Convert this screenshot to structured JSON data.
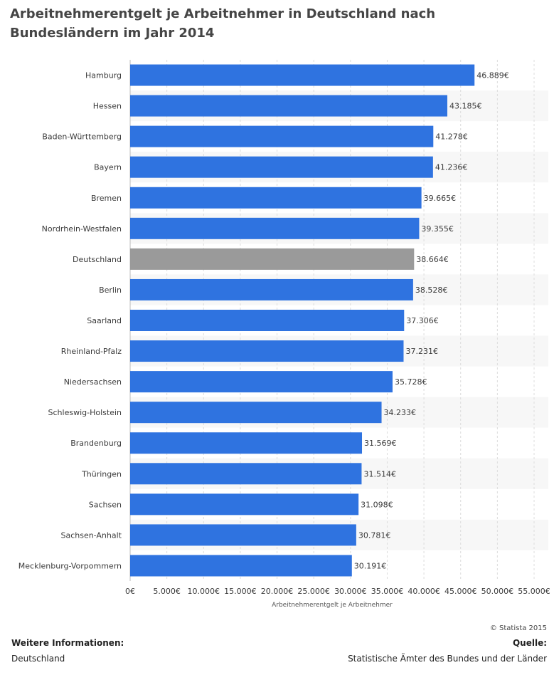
{
  "chart_data": {
    "type": "bar",
    "orientation": "horizontal",
    "title": "Arbeitnehmerentgelt je Arbeitnehmer in Deutschland nach Bundesländern im Jahr 2014",
    "xlabel": "Arbeitnehmerentgelt je Arbeitnehmer",
    "ylabel": "",
    "xlim": [
      0,
      55000
    ],
    "x_ticks": [
      0,
      5000,
      10000,
      15000,
      20000,
      25000,
      30000,
      35000,
      40000,
      45000,
      50000,
      55000
    ],
    "x_tick_labels": [
      "0€",
      "5.000€",
      "10.000€",
      "15.000€",
      "20.000€",
      "25.000€",
      "30.000€",
      "35.000€",
      "40.000€",
      "45.000€",
      "50.000€",
      "55.000€"
    ],
    "grid": true,
    "categories": [
      "Hamburg",
      "Hessen",
      "Baden-Württemberg",
      "Bayern",
      "Bremen",
      "Nordrhein-Westfalen",
      "Deutschland",
      "Berlin",
      "Saarland",
      "Rheinland-Pfalz",
      "Niedersachsen",
      "Schleswig-Holstein",
      "Brandenburg",
      "Thüringen",
      "Sachsen",
      "Sachsen-Anhalt",
      "Mecklenburg-Vorpommern"
    ],
    "values": [
      46889,
      43185,
      41278,
      41236,
      39665,
      39355,
      38664,
      38528,
      37306,
      37231,
      35728,
      34233,
      31569,
      31514,
      31098,
      30781,
      30191
    ],
    "value_labels": [
      "46.889€",
      "43.185€",
      "41.278€",
      "41.236€",
      "39.665€",
      "39.355€",
      "38.664€",
      "38.528€",
      "37.306€",
      "37.231€",
      "35.728€",
      "34.233€",
      "31.569€",
      "31.514€",
      "31.098€",
      "30.781€",
      "30.191€"
    ],
    "highlight_category": "Deutschland",
    "colors": {
      "bar": "#2f73e0",
      "highlight": "#9a9a9a",
      "alt_row": "#f7f7f7",
      "grid": "#dcdcdc"
    }
  },
  "footer": {
    "copyright": "© Statista 2015",
    "info_heading": "Weitere Informationen:",
    "info_text": "Deutschland",
    "source_heading": "Quelle:",
    "source_text": "Statistische Ämter des Bundes und der Länder"
  }
}
